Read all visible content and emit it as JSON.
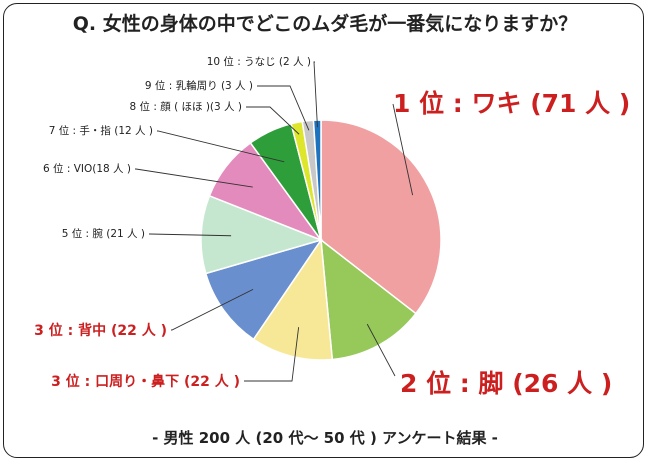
{
  "chart_data": {
    "type": "pie",
    "title": "Q. 女性の身体の中でどこのムダ毛が一番気になりますか？",
    "footer": "- 男性 200 人 (20 代〜 50 代 ) アンケート結果 -",
    "slices": [
      {
        "label": "1 位 : ワキ (71 人 )",
        "value": 71,
        "color": "#f0a0a0"
      },
      {
        "label": "2 位 : 脚 (26 人 )",
        "value": 26,
        "color": "#96c85a"
      },
      {
        "label": "3 位 : 口周り・鼻下 (22 人 )",
        "value": 22,
        "color": "#f7e898"
      },
      {
        "label": "3 位 : 背中 (22 人 )",
        "value": 22,
        "color": "#6a8fce"
      },
      {
        "label": "5 位 : 腕 (21 人 )",
        "value": 21,
        "color": "#c5e6cf"
      },
      {
        "label": "6 位 : VIO(18 人 )",
        "value": 18,
        "color": "#e48bbd"
      },
      {
        "label": "7 位 : 手・指 (12 人 )",
        "value": 12,
        "color": "#2e9e3a"
      },
      {
        "label": "8 位 : 顔 ( ほほ )(3 人 )",
        "value": 3,
        "color": "#dde62a"
      },
      {
        "label": "9 位 : 乳輪周り (3 人 )",
        "value": 3,
        "color": "#c8c8c8"
      },
      {
        "label": "10 位 : うなじ (2 人 )",
        "value": 2,
        "color": "#1e73be"
      }
    ]
  }
}
